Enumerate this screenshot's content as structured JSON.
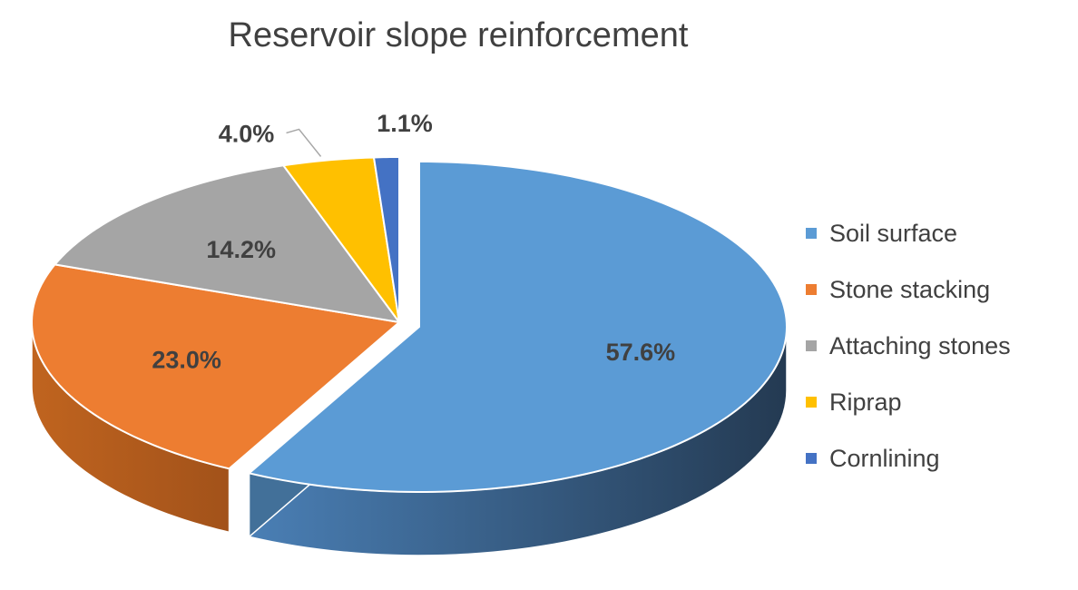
{
  "chart_data": {
    "type": "pie",
    "title": "Reservoir slope reinforcement",
    "legend_position": "right",
    "slices": [
      {
        "name": "Soil surface",
        "value": 57.6,
        "label": "57.6%",
        "color": "#5B9BD5",
        "exploded": true
      },
      {
        "name": "Stone stacking",
        "value": 23.0,
        "label": "23.0%",
        "color": "#ED7D31"
      },
      {
        "name": "Attaching stones",
        "value": 14.2,
        "label": "14.2%",
        "color": "#A5A5A5"
      },
      {
        "name": "Riprap",
        "value": 4.0,
        "label": "4.0%",
        "color": "#FFC000"
      },
      {
        "name": "Cornlining",
        "value": 1.1,
        "label": "1.1%",
        "color": "#4472C4"
      }
    ]
  }
}
